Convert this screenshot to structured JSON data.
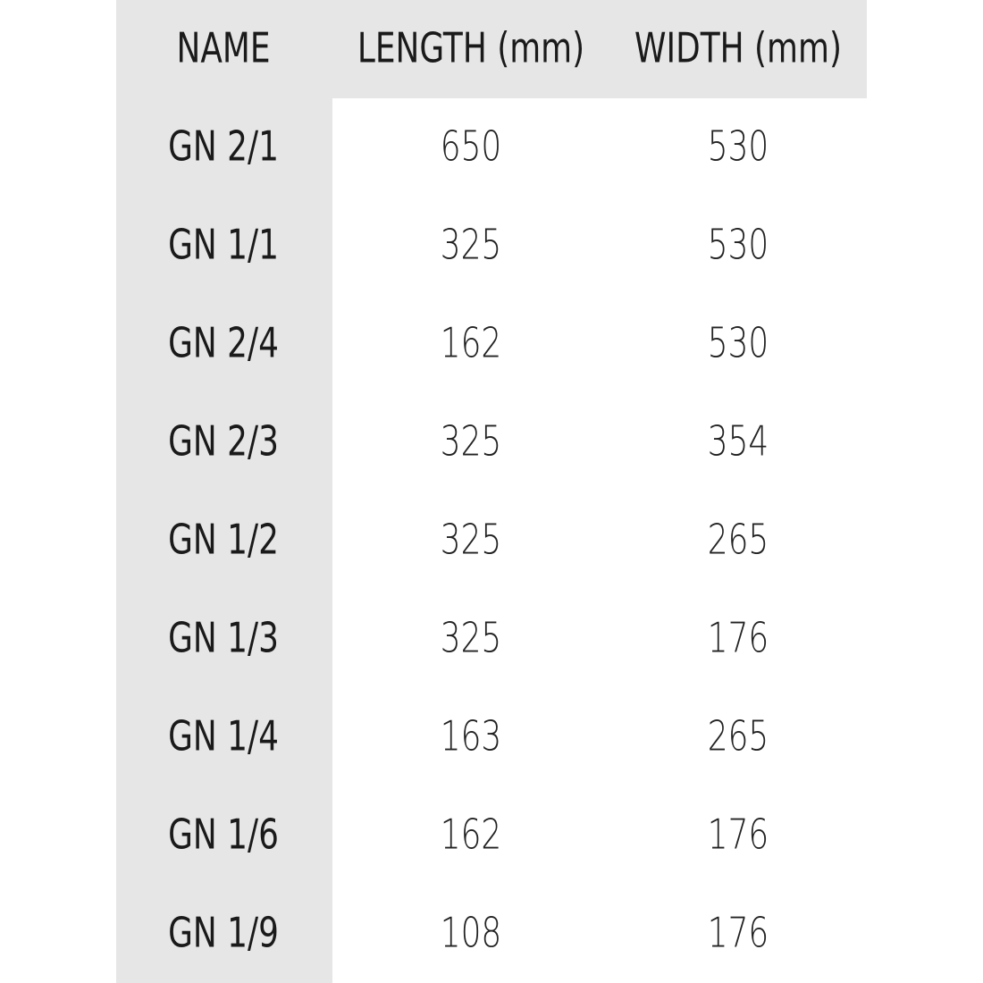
{
  "table": {
    "header": [
      "NAME",
      "LENGTH (mm)",
      "WIDTH (mm)"
    ],
    "rows": [
      [
        "GN 2/1",
        650,
        530
      ],
      [
        "GN 1/1",
        325,
        530
      ],
      [
        "GN 2/4",
        162,
        530
      ],
      [
        "GN 2/3",
        325,
        354
      ],
      [
        "GN 1/2",
        325,
        265
      ],
      [
        "GN 1/3",
        325,
        176
      ],
      [
        "GN 1/4",
        163,
        265
      ],
      [
        "GN 1/6",
        162,
        176
      ],
      [
        "GN 1/9",
        108,
        176
      ]
    ]
  }
}
